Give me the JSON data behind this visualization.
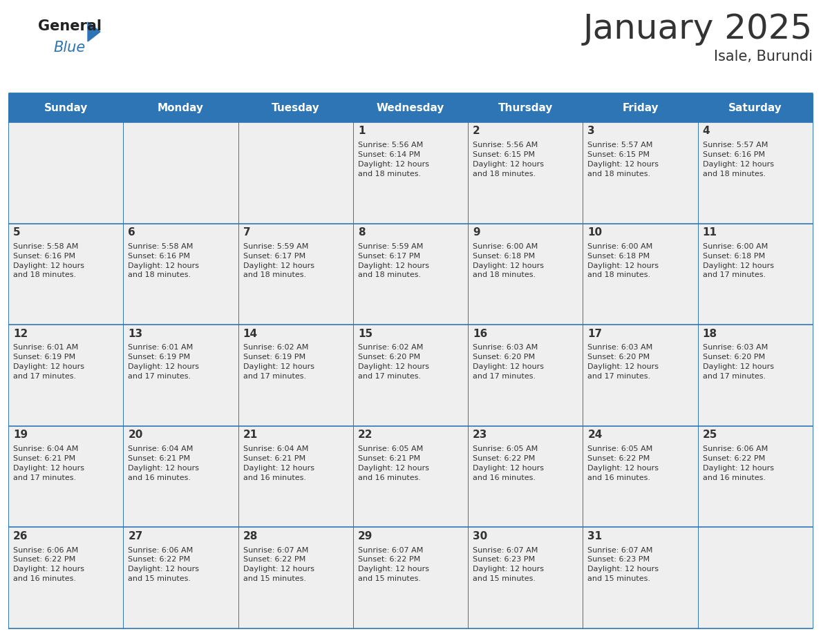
{
  "title": "January 2025",
  "subtitle": "Isale, Burundi",
  "header_bg": "#2E75B6",
  "header_text_color": "#FFFFFF",
  "cell_bg_light": "#EFEFEF",
  "cell_bg_white": "#FFFFFF",
  "border_color": "#2E75B6",
  "text_color": "#333333",
  "days_of_week": [
    "Sunday",
    "Monday",
    "Tuesday",
    "Wednesday",
    "Thursday",
    "Friday",
    "Saturday"
  ],
  "calendar_data": [
    [
      {
        "day": "",
        "sunrise": "",
        "sunset": "",
        "daylight": ""
      },
      {
        "day": "",
        "sunrise": "",
        "sunset": "",
        "daylight": ""
      },
      {
        "day": "",
        "sunrise": "",
        "sunset": "",
        "daylight": ""
      },
      {
        "day": "1",
        "sunrise": "5:56 AM",
        "sunset": "6:14 PM",
        "daylight": "12 hours and 18 minutes."
      },
      {
        "day": "2",
        "sunrise": "5:56 AM",
        "sunset": "6:15 PM",
        "daylight": "12 hours and 18 minutes."
      },
      {
        "day": "3",
        "sunrise": "5:57 AM",
        "sunset": "6:15 PM",
        "daylight": "12 hours and 18 minutes."
      },
      {
        "day": "4",
        "sunrise": "5:57 AM",
        "sunset": "6:16 PM",
        "daylight": "12 hours and 18 minutes."
      }
    ],
    [
      {
        "day": "5",
        "sunrise": "5:58 AM",
        "sunset": "6:16 PM",
        "daylight": "12 hours and 18 minutes."
      },
      {
        "day": "6",
        "sunrise": "5:58 AM",
        "sunset": "6:16 PM",
        "daylight": "12 hours and 18 minutes."
      },
      {
        "day": "7",
        "sunrise": "5:59 AM",
        "sunset": "6:17 PM",
        "daylight": "12 hours and 18 minutes."
      },
      {
        "day": "8",
        "sunrise": "5:59 AM",
        "sunset": "6:17 PM",
        "daylight": "12 hours and 18 minutes."
      },
      {
        "day": "9",
        "sunrise": "6:00 AM",
        "sunset": "6:18 PM",
        "daylight": "12 hours and 18 minutes."
      },
      {
        "day": "10",
        "sunrise": "6:00 AM",
        "sunset": "6:18 PM",
        "daylight": "12 hours and 18 minutes."
      },
      {
        "day": "11",
        "sunrise": "6:00 AM",
        "sunset": "6:18 PM",
        "daylight": "12 hours and 17 minutes."
      }
    ],
    [
      {
        "day": "12",
        "sunrise": "6:01 AM",
        "sunset": "6:19 PM",
        "daylight": "12 hours and 17 minutes."
      },
      {
        "day": "13",
        "sunrise": "6:01 AM",
        "sunset": "6:19 PM",
        "daylight": "12 hours and 17 minutes."
      },
      {
        "day": "14",
        "sunrise": "6:02 AM",
        "sunset": "6:19 PM",
        "daylight": "12 hours and 17 minutes."
      },
      {
        "day": "15",
        "sunrise": "6:02 AM",
        "sunset": "6:20 PM",
        "daylight": "12 hours and 17 minutes."
      },
      {
        "day": "16",
        "sunrise": "6:03 AM",
        "sunset": "6:20 PM",
        "daylight": "12 hours and 17 minutes."
      },
      {
        "day": "17",
        "sunrise": "6:03 AM",
        "sunset": "6:20 PM",
        "daylight": "12 hours and 17 minutes."
      },
      {
        "day": "18",
        "sunrise": "6:03 AM",
        "sunset": "6:20 PM",
        "daylight": "12 hours and 17 minutes."
      }
    ],
    [
      {
        "day": "19",
        "sunrise": "6:04 AM",
        "sunset": "6:21 PM",
        "daylight": "12 hours and 17 minutes."
      },
      {
        "day": "20",
        "sunrise": "6:04 AM",
        "sunset": "6:21 PM",
        "daylight": "12 hours and 16 minutes."
      },
      {
        "day": "21",
        "sunrise": "6:04 AM",
        "sunset": "6:21 PM",
        "daylight": "12 hours and 16 minutes."
      },
      {
        "day": "22",
        "sunrise": "6:05 AM",
        "sunset": "6:21 PM",
        "daylight": "12 hours and 16 minutes."
      },
      {
        "day": "23",
        "sunrise": "6:05 AM",
        "sunset": "6:22 PM",
        "daylight": "12 hours and 16 minutes."
      },
      {
        "day": "24",
        "sunrise": "6:05 AM",
        "sunset": "6:22 PM",
        "daylight": "12 hours and 16 minutes."
      },
      {
        "day": "25",
        "sunrise": "6:06 AM",
        "sunset": "6:22 PM",
        "daylight": "12 hours and 16 minutes."
      }
    ],
    [
      {
        "day": "26",
        "sunrise": "6:06 AM",
        "sunset": "6:22 PM",
        "daylight": "12 hours and 16 minutes."
      },
      {
        "day": "27",
        "sunrise": "6:06 AM",
        "sunset": "6:22 PM",
        "daylight": "12 hours and 15 minutes."
      },
      {
        "day": "28",
        "sunrise": "6:07 AM",
        "sunset": "6:22 PM",
        "daylight": "12 hours and 15 minutes."
      },
      {
        "day": "29",
        "sunrise": "6:07 AM",
        "sunset": "6:22 PM",
        "daylight": "12 hours and 15 minutes."
      },
      {
        "day": "30",
        "sunrise": "6:07 AM",
        "sunset": "6:23 PM",
        "daylight": "12 hours and 15 minutes."
      },
      {
        "day": "31",
        "sunrise": "6:07 AM",
        "sunset": "6:23 PM",
        "daylight": "12 hours and 15 minutes."
      },
      {
        "day": "",
        "sunrise": "",
        "sunset": "",
        "daylight": ""
      }
    ]
  ],
  "logo_general_color": "#222222",
  "logo_blue_color": "#2E75B6",
  "title_fontsize": 36,
  "subtitle_fontsize": 15,
  "day_header_fontsize": 11,
  "day_number_fontsize": 11,
  "cell_text_fontsize": 8.0,
  "fig_width": 11.88,
  "fig_height": 9.18
}
